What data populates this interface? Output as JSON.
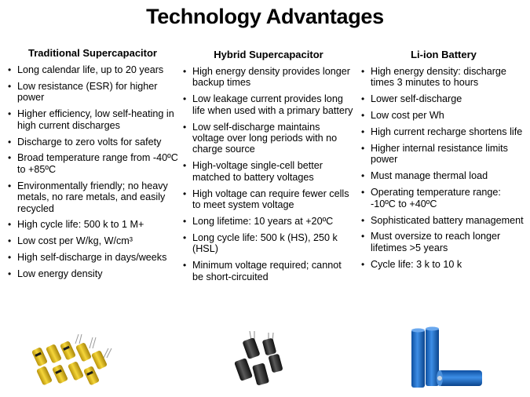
{
  "slide": {
    "title": "Technology Advantages"
  },
  "columns": [
    {
      "heading": "Traditional Supercapacitor",
      "items": [
        "Long calendar life, up to 20 years",
        "Low resistance (ESR) for higher power",
        "Higher efficiency, low self-heating in high current discharges",
        "Discharge to zero volts for safety",
        "Broad temperature range from -40ºC to +85ºC",
        "Environmentally friendly; no heavy metals, no rare metals, and easily recycled",
        "High cycle life: 500 k to 1 M+",
        "Low cost per W/kg, W/cm³",
        "High self-discharge in days/weeks",
        "Low energy density"
      ],
      "image": "yellow-supercapacitors"
    },
    {
      "heading": "Hybrid Supercapacitor",
      "items": [
        "High energy density provides longer backup times",
        "Low leakage current provides long life when used with a primary battery",
        "Low self-discharge maintains voltage over long periods with no charge source",
        "High-voltage single-cell better matched to battery voltages",
        "High voltage can require fewer cells to meet system voltage",
        "Long lifetime: 10 years at +20ºC",
        "Long cycle life: 500 k (HS), 250 k (HSL)",
        "Minimum voltage required; cannot be short-circuited"
      ],
      "image": "black-hybrid-capacitors"
    },
    {
      "heading": "Li-ion Battery",
      "items": [
        "High energy density: discharge times 3 minutes to hours",
        "Lower self-discharge",
        "Low cost per Wh",
        "High current recharge shortens life",
        "Higher internal resistance limits power",
        "Must manage thermal load",
        "Operating temperature range: -10ºC to +40ºC",
        "Sophisticated battery management",
        "Must oversize to reach longer lifetimes >5 years",
        "Cycle life: 3 k to 10 k"
      ],
      "image": "blue-li-ion-cells"
    }
  ],
  "colors": {
    "supercap_yellow": "#e8c21a",
    "hybrid_black": "#1c1c1c",
    "battery_blue": "#1f6fc9"
  }
}
